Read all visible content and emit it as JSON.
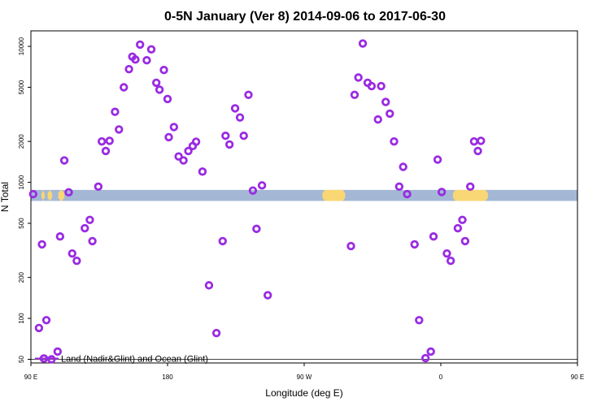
{
  "chart_data": {
    "type": "scatter",
    "title": "0-5N January (Ver 8)   2014-09-06 to 2017-06-30",
    "xlabel": "Longitude (deg E)",
    "ylabel": "N Total",
    "y_scale": "log",
    "ylim": [
      47,
      13000
    ],
    "xlim": [
      90,
      450
    ],
    "x_ticks": [
      {
        "value": 90,
        "label": "90 E"
      },
      {
        "value": 180,
        "label": "180"
      },
      {
        "value": 270,
        "label": "90 W"
      },
      {
        "value": 360,
        "label": "0"
      },
      {
        "value": 450,
        "label": "90 E"
      },
      {
        "value": 540,
        "label": "180"
      }
    ],
    "y_ticks": [
      {
        "value": 50,
        "label": "50"
      },
      {
        "value": 100,
        "label": "100"
      },
      {
        "value": 200,
        "label": "200"
      },
      {
        "value": 500,
        "label": "500"
      },
      {
        "value": 1000,
        "label": "1000"
      },
      {
        "value": 2000,
        "label": "2000"
      },
      {
        "value": 5000,
        "label": "5000"
      },
      {
        "value": 10000,
        "label": "10000"
      }
    ],
    "reference_line_y": 50,
    "land_ocean_band": {
      "y_range": [
        730,
        880
      ],
      "ocean_color": "#a4b8d6",
      "land_color": "#f8d774",
      "land_segments": [
        [
          97,
          99
        ],
        [
          101,
          104
        ],
        [
          108,
          112
        ],
        [
          282,
          297
        ],
        [
          368,
          391
        ],
        [
          455,
          458
        ],
        [
          461,
          463
        ],
        [
          467,
          470
        ]
      ]
    },
    "legend": {
      "label": "Land (Nadir&Glint) and Ocean (Glint)",
      "placement": "bottom-left",
      "color": "#9a2be2"
    },
    "marker_color": "#9a2be2",
    "series": [
      {
        "name": "Land (Nadir&Glint) and Ocean (Glint)",
        "points": [
          [
            91.5,
            820
          ],
          [
            95.3,
            85
          ],
          [
            97.3,
            350
          ],
          [
            100.2,
            97
          ],
          [
            103.6,
            50
          ],
          [
            107.6,
            57
          ],
          [
            109.2,
            400
          ],
          [
            112.0,
            1450
          ],
          [
            114.9,
            845
          ],
          [
            117.2,
            300
          ],
          [
            120.2,
            265
          ],
          [
            125.5,
            460
          ],
          [
            128.8,
            530
          ],
          [
            130.5,
            370
          ],
          [
            134.4,
            930
          ],
          [
            136.7,
            2000
          ],
          [
            139.3,
            1700
          ],
          [
            141.8,
            2020
          ],
          [
            145.4,
            3300
          ],
          [
            148.0,
            2450
          ],
          [
            151.2,
            5000
          ],
          [
            154.6,
            6800
          ],
          [
            156.8,
            8400
          ],
          [
            158.8,
            8000
          ],
          [
            161.9,
            10300
          ],
          [
            166.3,
            7900
          ],
          [
            169.3,
            9500
          ],
          [
            172.6,
            5400
          ],
          [
            174.7,
            4800
          ],
          [
            177.6,
            6700
          ],
          [
            180.0,
            4100
          ],
          [
            180.8,
            2150
          ],
          [
            184.2,
            2550
          ],
          [
            187.3,
            1550
          ],
          [
            190.5,
            1450
          ],
          [
            193.7,
            1700
          ],
          [
            196.6,
            1850
          ],
          [
            198.8,
            1990
          ],
          [
            203.0,
            1200
          ],
          [
            207.3,
            175
          ],
          [
            212.2,
            78
          ],
          [
            216.3,
            370
          ],
          [
            218.2,
            2200
          ],
          [
            220.8,
            1900
          ],
          [
            224.5,
            3500
          ],
          [
            227.7,
            3000
          ],
          [
            230.2,
            2200
          ],
          [
            233.3,
            4400
          ],
          [
            236.2,
            870
          ],
          [
            238.6,
            455
          ],
          [
            242.2,
            950
          ],
          [
            246.0,
            148
          ],
          [
            300.8,
            340
          ],
          [
            303.2,
            4400
          ],
          [
            305.7,
            5900
          ],
          [
            308.6,
            10500
          ],
          [
            311.8,
            5400
          ],
          [
            314.4,
            5100
          ],
          [
            318.6,
            2900
          ],
          [
            320.7,
            5100
          ],
          [
            323.7,
            3900
          ],
          [
            326.4,
            3200
          ],
          [
            329.2,
            2000
          ],
          [
            332.6,
            930
          ],
          [
            335.2,
            1300
          ],
          [
            337.8,
            820
          ],
          [
            342.7,
            350
          ],
          [
            345.7,
            97
          ],
          [
            349.9,
            51
          ],
          [
            353.4,
            57
          ],
          [
            355.2,
            400
          ],
          [
            357.9,
            1470
          ],
          [
            360.6,
            850
          ],
          [
            364.0,
            300
          ],
          [
            366.5,
            265
          ],
          [
            371.2,
            460
          ],
          [
            374.2,
            530
          ],
          [
            376.0,
            370
          ],
          [
            379.4,
            930
          ],
          [
            381.9,
            2000
          ],
          [
            384.4,
            1700
          ],
          [
            386.4,
            2020
          ]
        ]
      }
    ]
  }
}
